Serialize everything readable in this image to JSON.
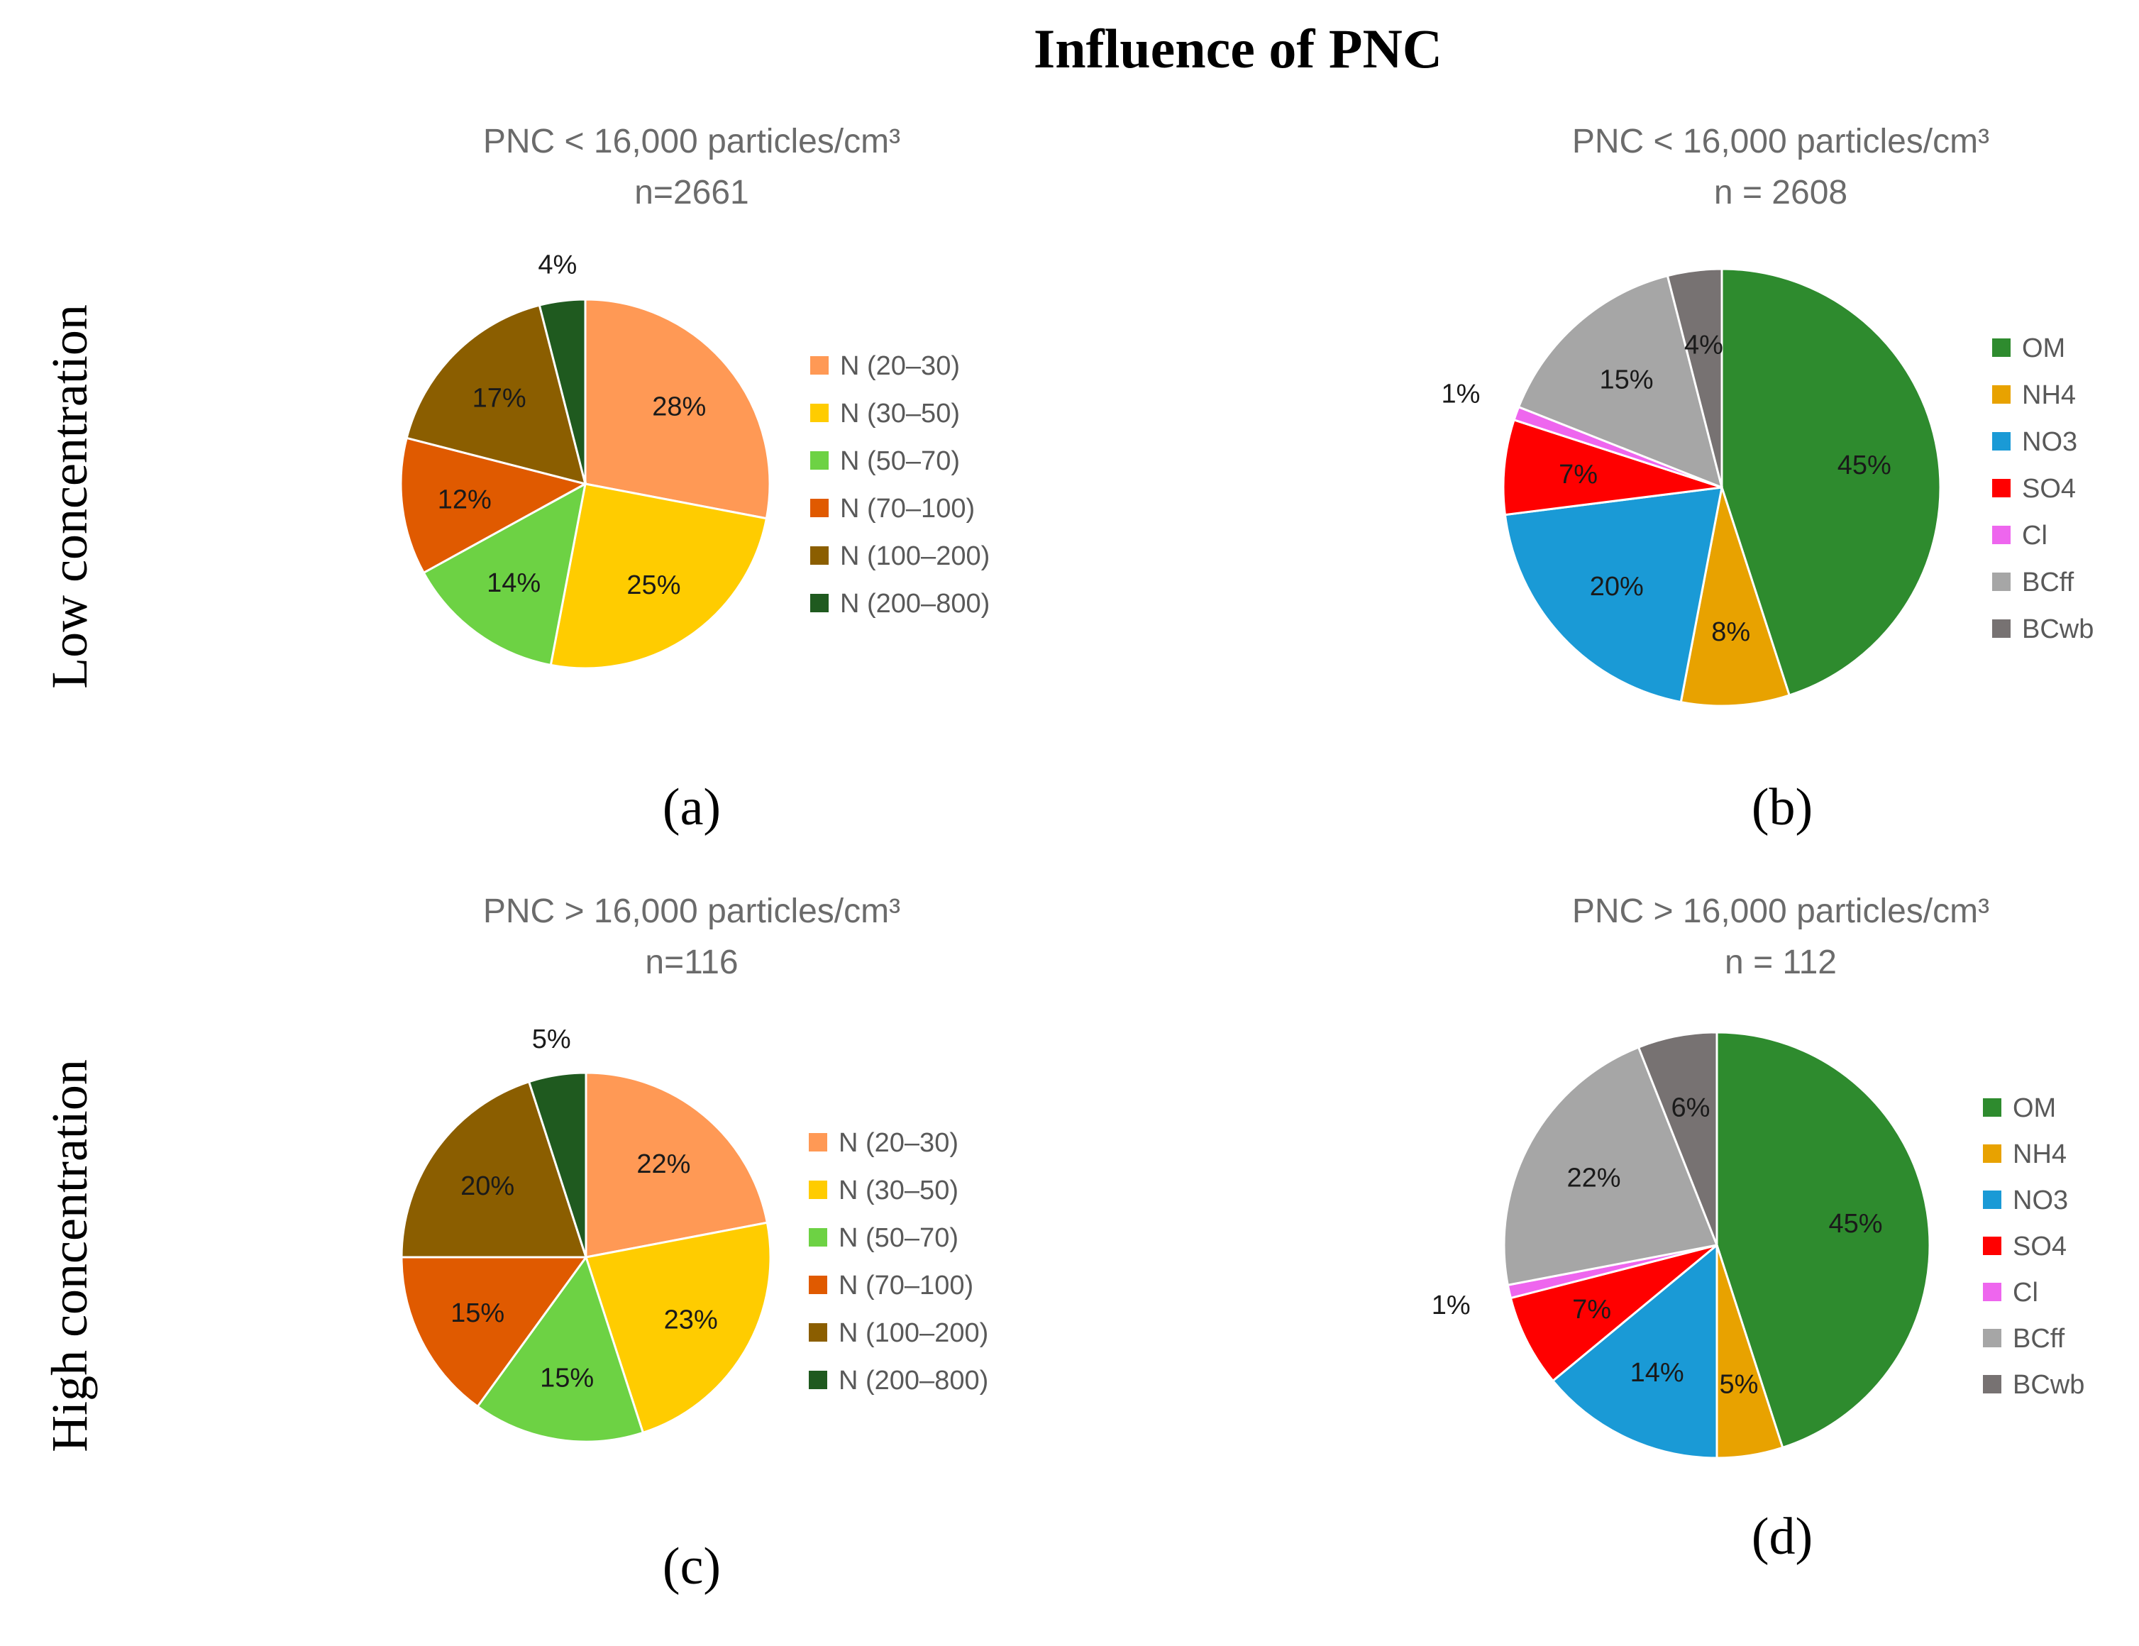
{
  "figure": {
    "title": "Influence of PNC",
    "row_labels": [
      "Low concentration",
      "High concentration"
    ]
  },
  "colors": {
    "size_bins": [
      "#FF9955",
      "#FFCC00",
      "#6DD244",
      "#E05A00",
      "#8B5E00",
      "#1F5A1F"
    ],
    "species": [
      "#2E8B2E",
      "#E8A200",
      "#1A9AD6",
      "#FF0000",
      "#EE66EE",
      "#A6A6A6",
      "#777272"
    ]
  },
  "chart_data": [
    {
      "id": "a",
      "type": "pie",
      "panel_label": "(a)",
      "title": "PNC < 16,000 particles/cm³",
      "subtitle": "n=2661",
      "labels": [
        "N (20–30)",
        "N (30–50)",
        "N (50–70)",
        "N (70–100)",
        "N (100–200)",
        "N (200–800)"
      ],
      "values": [
        28,
        25,
        14,
        12,
        17,
        4
      ],
      "value_labels": [
        "28%",
        "25%",
        "14%",
        "12%",
        "17%",
        "4%"
      ]
    },
    {
      "id": "b",
      "type": "pie",
      "panel_label": "(b)",
      "title": "PNC < 16,000 particles/cm³",
      "subtitle": "n = 2608",
      "labels": [
        "OM",
        "NH4",
        "NO3",
        "SO4",
        "Cl",
        "BCff",
        "BCwb"
      ],
      "values": [
        45,
        8,
        20,
        7,
        1,
        15,
        4
      ],
      "value_labels": [
        "45%",
        "8%",
        "20%",
        "7%",
        "1%",
        "15%",
        "4%"
      ]
    },
    {
      "id": "c",
      "type": "pie",
      "panel_label": "(c)",
      "title": "PNC > 16,000 particles/cm³",
      "subtitle": "n=116",
      "labels": [
        "N (20–30)",
        "N (30–50)",
        "N (50–70)",
        "N (70–100)",
        "N (100–200)",
        "N (200–800)"
      ],
      "values": [
        22,
        23,
        15,
        15,
        20,
        5
      ],
      "value_labels": [
        "22%",
        "23%",
        "15%",
        "15%",
        "20%",
        "5%"
      ]
    },
    {
      "id": "d",
      "type": "pie",
      "panel_label": "(d)",
      "title": "PNC > 16,000 particles/cm³",
      "subtitle": "n = 112",
      "labels": [
        "OM",
        "NH4",
        "NO3",
        "SO4",
        "Cl",
        "BCff",
        "BCwb"
      ],
      "values": [
        45,
        5,
        14,
        7,
        1,
        22,
        6
      ],
      "value_labels": [
        "45%",
        "5%",
        "14%",
        "7%",
        "1%",
        "22%",
        "6%"
      ]
    }
  ]
}
